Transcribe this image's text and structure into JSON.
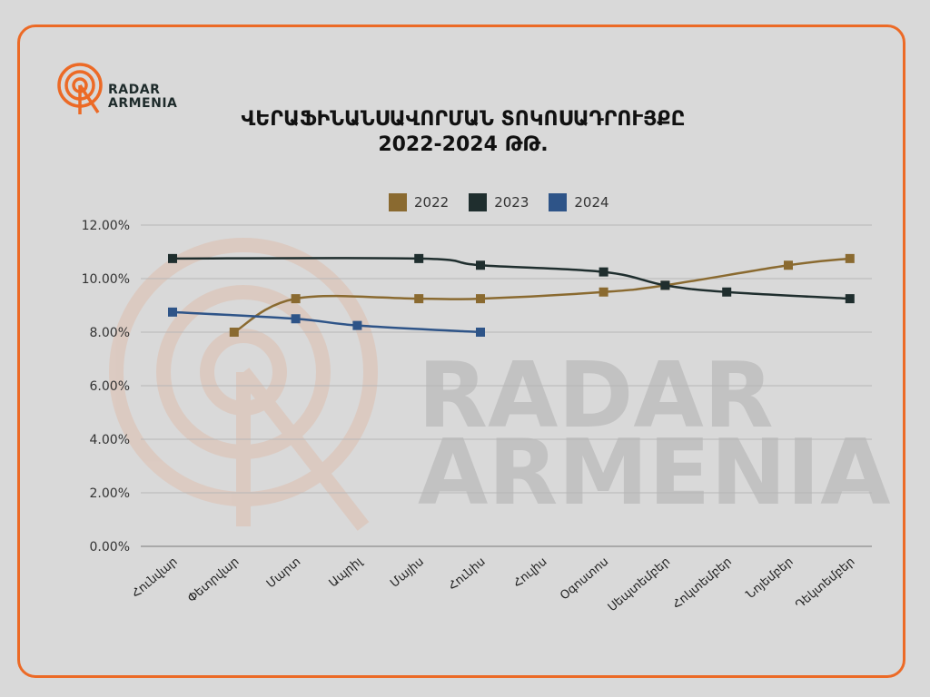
{
  "brand": {
    "line1": "RADAR",
    "line2": "ARMENIA",
    "color": "#ec6a26"
  },
  "title": {
    "line1": "ՎԵՐԱՖԻՆԱՆՍԱՎՈՐՄԱՆ ՏՈԿՈՍԱԴՐՈՒՅՔԸ",
    "line2": "2022-2024 ԹԹ."
  },
  "colors": {
    "2022": "#8a6a30",
    "2023": "#1f2e2e",
    "2024": "#2e5488",
    "frame": "#ec6a26",
    "grid": "#b7b7b7",
    "background": "#d9d9d9"
  },
  "chart_data": {
    "type": "line",
    "title": "ՎԵՐԱՖԻՆԱՆՍԱՎՈՐՄԱՆ ՏՈԿՈՍԱԴՐՈՒՅՔԸ 2022-2024 ԹԹ.",
    "categories": [
      "Հունվար",
      "Փետրվար",
      "Մարտ",
      "Ապրիլ",
      "Մայիս",
      "Հունիս",
      "Հուլիս",
      "Օգոստոս",
      "Սեպտեմբեր",
      "Հոկտեմբեր",
      "Նոյեմբեր",
      "Դեկտեմբեր"
    ],
    "series": [
      {
        "name": "2022",
        "values": [
          null,
          8.0,
          9.25,
          null,
          9.25,
          9.25,
          null,
          9.5,
          9.75,
          null,
          10.5,
          10.75
        ]
      },
      {
        "name": "2023",
        "values": [
          10.75,
          null,
          null,
          null,
          10.75,
          10.5,
          null,
          10.25,
          9.75,
          9.5,
          null,
          9.25
        ]
      },
      {
        "name": "2024",
        "values": [
          8.75,
          null,
          8.5,
          8.25,
          null,
          8.0,
          null,
          null,
          null,
          null,
          null,
          null
        ]
      }
    ],
    "yticks": [
      "0.00%",
      "2.00%",
      "4.00%",
      "6.00%",
      "8.00%",
      "10.00%",
      "12.00%"
    ],
    "ylim": [
      0,
      12
    ],
    "grid": true,
    "legend": "top"
  }
}
